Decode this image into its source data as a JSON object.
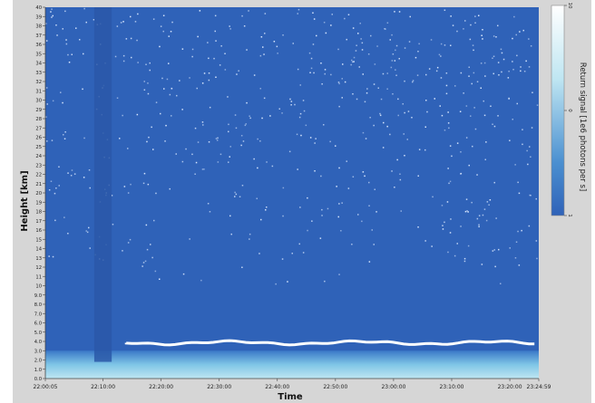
{
  "chart_data": {
    "type": "heatmap",
    "xlabel": "Time",
    "ylabel": "Height [km]",
    "x_ticks": [
      "22:00:05",
      "22:10:00",
      "22:20:00",
      "22:30:00",
      "22:40:00",
      "22:50:00",
      "23:00:00",
      "23:10:00",
      "23:20:00",
      "23:24:59"
    ],
    "x_range": [
      "22:00:05",
      "23:24:59"
    ],
    "y_ticks": [
      "0.0",
      "1.0",
      "2.0",
      "3.0",
      "4.0",
      "5.0",
      "6.0",
      "7.0",
      "8.0",
      "9.0",
      "10",
      "11",
      "12",
      "13",
      "14",
      "15",
      "16",
      "17",
      "18",
      "19",
      "20",
      "21",
      "22",
      "23",
      "24",
      "25",
      "26",
      "27",
      "28",
      "29",
      "30",
      "31",
      "32",
      "33",
      "34",
      "35",
      "36",
      "37",
      "38",
      "39",
      "40"
    ],
    "y_range": [
      0,
      40
    ],
    "colorbar": {
      "label": "Return signal [1e6 photons per s]",
      "ticks": [
        "10",
        "0",
        "1"
      ],
      "colors": [
        "#ffffff",
        "#bfe6f2",
        "#4a8fd0",
        "#2f62b8"
      ]
    },
    "features": {
      "background_color": "#2f62b8",
      "noise_speckle_color": "#dbe9ff",
      "cloud_layer": {
        "height_km": [
          3.5,
          4.2
        ],
        "time_start": "22:14:00",
        "time_end": "23:24:59",
        "color": "#ffffff"
      },
      "boundary_layer": {
        "height_km": [
          0.0,
          3.0
        ],
        "color": "#bfe6f2"
      },
      "gap": {
        "time_start": "22:08:30",
        "time_end": "22:11:30",
        "height_km": [
          1.8,
          40
        ]
      }
    },
    "grid": false
  }
}
